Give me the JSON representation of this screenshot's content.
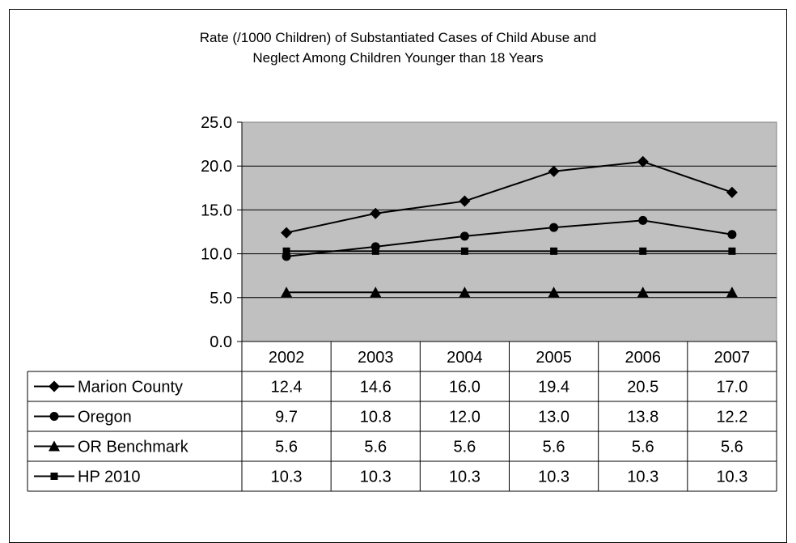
{
  "chart_data": {
    "type": "line",
    "title_lines": [
      "Rate (/1000 Children) of Substantiated Cases of Child Abuse and",
      "Neglect Among Children Younger than 18 Years"
    ],
    "categories": [
      "2002",
      "2003",
      "2004",
      "2005",
      "2006",
      "2007"
    ],
    "series": [
      {
        "name": "Marion County",
        "marker": "diamond",
        "values": [
          12.4,
          14.6,
          16.0,
          19.4,
          20.5,
          17.0
        ],
        "labels": [
          "12.4",
          "14.6",
          "16.0",
          "19.4",
          "20.5",
          "17.0"
        ]
      },
      {
        "name": "Oregon",
        "marker": "circle",
        "values": [
          9.7,
          10.8,
          12.0,
          13.0,
          13.8,
          12.2
        ],
        "labels": [
          "9.7",
          "10.8",
          "12.0",
          "13.0",
          "13.8",
          "12.2"
        ]
      },
      {
        "name": "OR Benchmark",
        "marker": "triangle",
        "values": [
          5.6,
          5.6,
          5.6,
          5.6,
          5.6,
          5.6
        ],
        "labels": [
          "5.6",
          "5.6",
          "5.6",
          "5.6",
          "5.6",
          "5.6"
        ]
      },
      {
        "name": "HP 2010",
        "marker": "square",
        "values": [
          10.3,
          10.3,
          10.3,
          10.3,
          10.3,
          10.3
        ],
        "labels": [
          "10.3",
          "10.3",
          "10.3",
          "10.3",
          "10.3",
          "10.3"
        ]
      }
    ],
    "y_ticks": [
      "0.0",
      "5.0",
      "10.0",
      "15.0",
      "20.0",
      "25.0"
    ],
    "ylim": [
      0,
      25
    ],
    "grid": true,
    "plot_background": "#c0c0c0",
    "line_color": "#000000",
    "legend": "data-table"
  }
}
